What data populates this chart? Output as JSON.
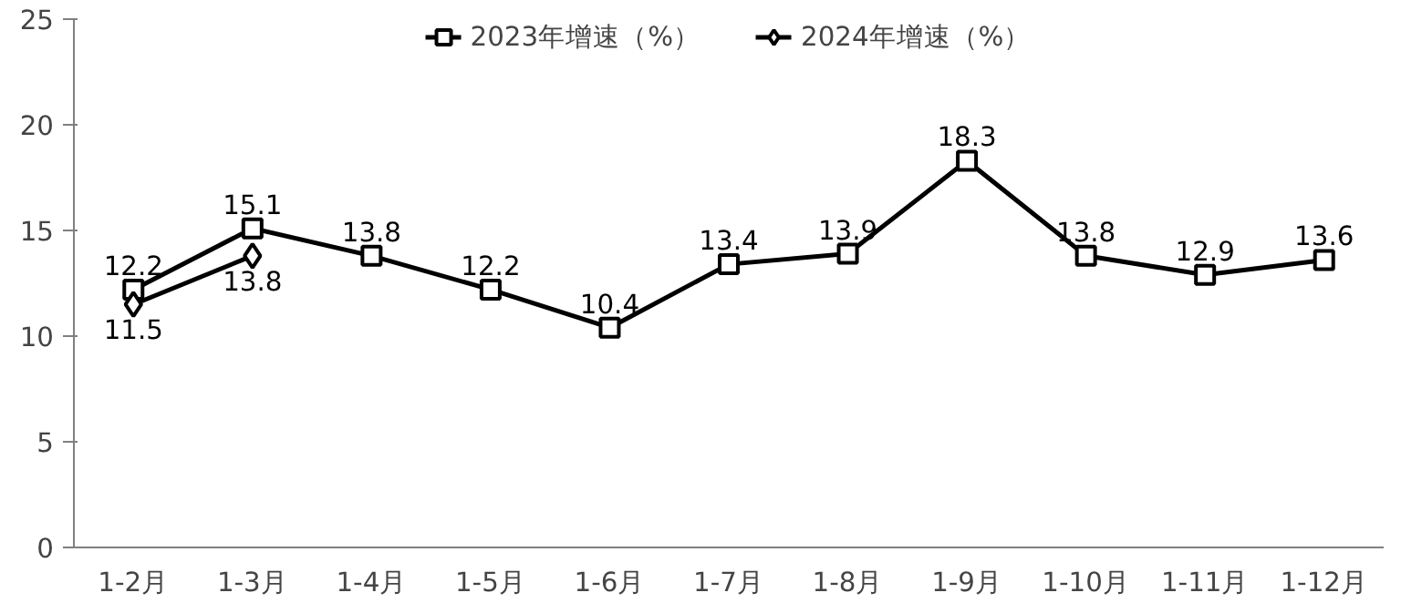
{
  "chart_data": {
    "type": "line",
    "categories": [
      "1-2月",
      "1-3月",
      "1-4月",
      "1-5月",
      "1-6月",
      "1-7月",
      "1-8月",
      "1-9月",
      "1-10月",
      "1-11月",
      "1-12月"
    ],
    "series": [
      {
        "name": "2023年增速（%）",
        "color": "#000000",
        "marker": "square",
        "values": [
          12.2,
          15.1,
          13.8,
          12.2,
          10.4,
          13.4,
          13.9,
          18.3,
          13.8,
          12.9,
          13.6
        ]
      },
      {
        "name": "2024年增速（%）",
        "color": "#000000",
        "marker": "diamond",
        "values": [
          11.5,
          13.8,
          null,
          null,
          null,
          null,
          null,
          null,
          null,
          null,
          null
        ]
      }
    ],
    "ylim": [
      0,
      25
    ],
    "yticks": [
      0,
      5,
      10,
      15,
      20,
      25
    ],
    "grid": false,
    "legend": "top",
    "data_labels": true,
    "line_style": "solid"
  }
}
